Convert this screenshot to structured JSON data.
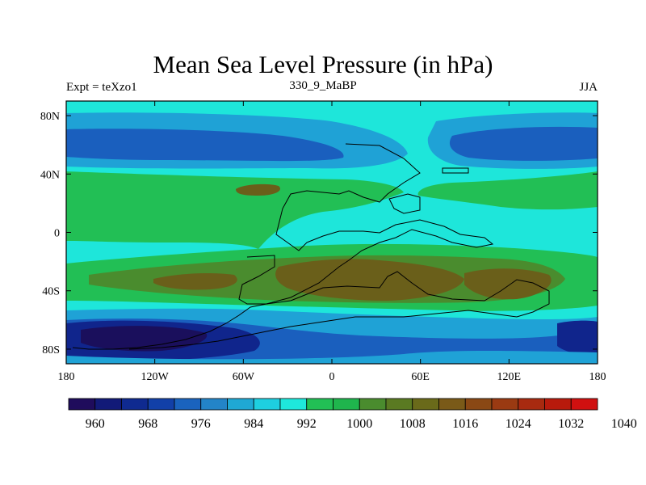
{
  "title": "Mean Sea Level Pressure (in hPa)",
  "subtitle_left": "Expt = teXzo1",
  "subtitle_center": "330_9_MaBP",
  "subtitle_right": "JJA",
  "map": {
    "lon_range": [
      -180,
      180
    ],
    "lat_range": [
      -90,
      90
    ],
    "lon_ticks": [
      {
        "value": -180,
        "label": "180"
      },
      {
        "value": -120,
        "label": "120W"
      },
      {
        "value": -60,
        "label": "60W"
      },
      {
        "value": 0,
        "label": "0"
      },
      {
        "value": 60,
        "label": "60E"
      },
      {
        "value": 120,
        "label": "120E"
      },
      {
        "value": 180,
        "label": "180"
      }
    ],
    "lat_ticks": [
      {
        "value": 80,
        "label": "80N"
      },
      {
        "value": 40,
        "label": "40N"
      },
      {
        "value": 0,
        "label": "0"
      },
      {
        "value": -40,
        "label": "40S"
      },
      {
        "value": -80,
        "label": "80S"
      }
    ]
  },
  "colorbar": {
    "colors": [
      "#1f0c5c",
      "#121a78",
      "#0f2a90",
      "#1240a8",
      "#1a63be",
      "#2384c8",
      "#1fa8d4",
      "#1ecfe0",
      "#1ee8dc",
      "#22c055",
      "#1fb54d",
      "#4a8c2e",
      "#5a7a22",
      "#6a6a1a",
      "#7a5a18",
      "#8a4814",
      "#9a3a12",
      "#a82a10",
      "#b81a0c",
      "#d01010"
    ],
    "labels": [
      "960",
      "968",
      "976",
      "984",
      "992",
      "1000",
      "1008",
      "1016",
      "1024",
      "1032",
      "1040"
    ]
  },
  "palette": {
    "lo_deep": "#1a0f5c",
    "lo_dark": "#10258c",
    "lo_mid": "#1a5fbe",
    "lo_light": "#1fa2d6",
    "cyan": "#1ee6da",
    "green": "#22bf55",
    "green_dark": "#4a8c2e",
    "brown": "#6a5f1a"
  }
}
